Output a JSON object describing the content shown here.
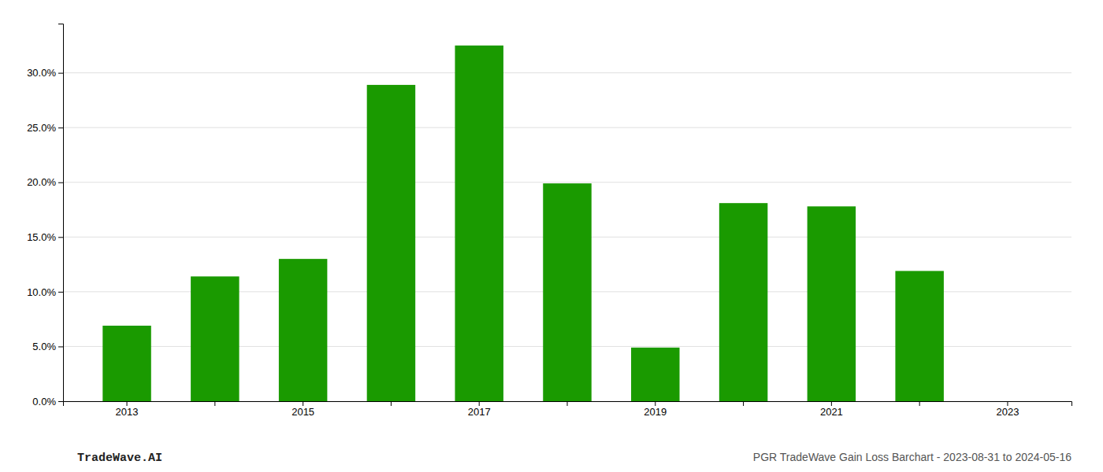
{
  "chart_data": {
    "type": "bar",
    "categories": [
      "2013",
      null,
      "2015",
      null,
      "2017",
      null,
      "2019",
      null,
      "2021",
      null,
      "2023"
    ],
    "values": [
      0.069,
      0.114,
      0.13,
      0.289,
      0.325,
      0.199,
      0.049,
      0.181,
      0.178,
      0.119,
      null
    ],
    "color": "#1a9a00",
    "ylim": [
      0,
      0.345
    ],
    "yticks": [
      {
        "value": 0.0,
        "label": "0.0%"
      },
      {
        "value": 0.05,
        "label": "5.0%"
      },
      {
        "value": 0.1,
        "label": "10.0%"
      },
      {
        "value": 0.15,
        "label": "15.0%"
      },
      {
        "value": 0.2,
        "label": "20.0%"
      },
      {
        "value": 0.25,
        "label": "25.0%"
      },
      {
        "value": 0.3,
        "label": "30.0%"
      }
    ],
    "grid": true,
    "annotations": [
      "TradeWave.AI",
      "PGR TradeWave Gain Loss Barchart - 2023-08-31 to 2024-05-16"
    ]
  }
}
